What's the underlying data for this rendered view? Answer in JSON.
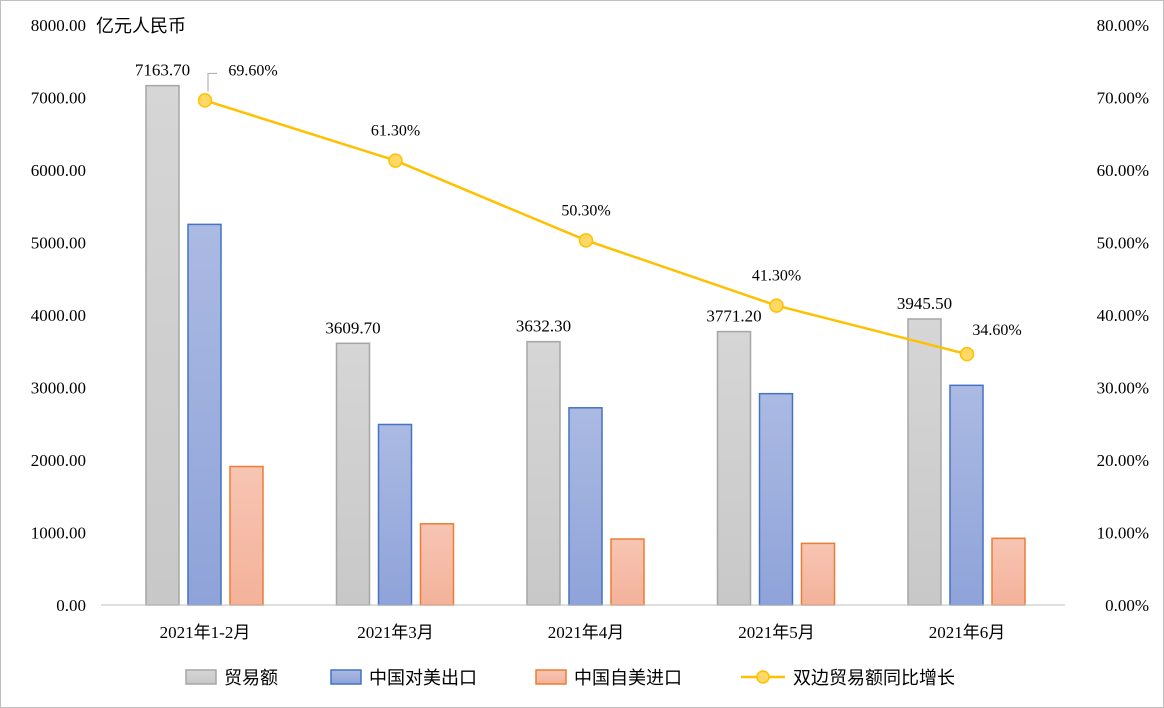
{
  "chart_data": {
    "type": "bar",
    "unit_label": "亿元人民币",
    "categories": [
      "2021年1-2月",
      "2021年3月",
      "2021年4月",
      "2021年5月",
      "2021年6月"
    ],
    "ylim": [
      0,
      8000
    ],
    "y_ticks": [
      "0.00",
      "1000.00",
      "2000.00",
      "3000.00",
      "4000.00",
      "5000.00",
      "6000.00",
      "7000.00",
      "8000.00"
    ],
    "y2lim": [
      0,
      80
    ],
    "y2_ticks": [
      "0.00%",
      "10.00%",
      "20.00%",
      "30.00%",
      "40.00%",
      "50.00%",
      "60.00%",
      "70.00%",
      "80.00%"
    ],
    "grid": false,
    "legend_position": "bottom",
    "series": [
      {
        "name": "贸易额",
        "kind": "bar",
        "values": [
          7163.7,
          3609.7,
          3632.3,
          3771.2,
          3945.5
        ],
        "labels": [
          "7163.70",
          "3609.70",
          "3632.30",
          "3771.20",
          "3945.50"
        ],
        "color": "#c8c8c8",
        "stroke": "#a6a6a6"
      },
      {
        "name": "中国对美出口",
        "kind": "bar",
        "values": [
          5250,
          2490,
          2720,
          2915,
          3030
        ],
        "color": "#8fa3d9",
        "stroke": "#4472c4"
      },
      {
        "name": "中国自美进口",
        "kind": "bar",
        "values": [
          1910,
          1120,
          910,
          850,
          920
        ],
        "color": "#f4b29a",
        "stroke": "#ed7d31"
      },
      {
        "name": "双边贸易额同比增长",
        "kind": "line",
        "axis": "right",
        "values": [
          69.6,
          61.3,
          50.3,
          41.3,
          34.6
        ],
        "labels": [
          "69.60%",
          "61.30%",
          "50.30%",
          "41.30%",
          "34.60%"
        ],
        "color": "#ffc000",
        "marker_fill": "#ffd966"
      }
    ]
  }
}
